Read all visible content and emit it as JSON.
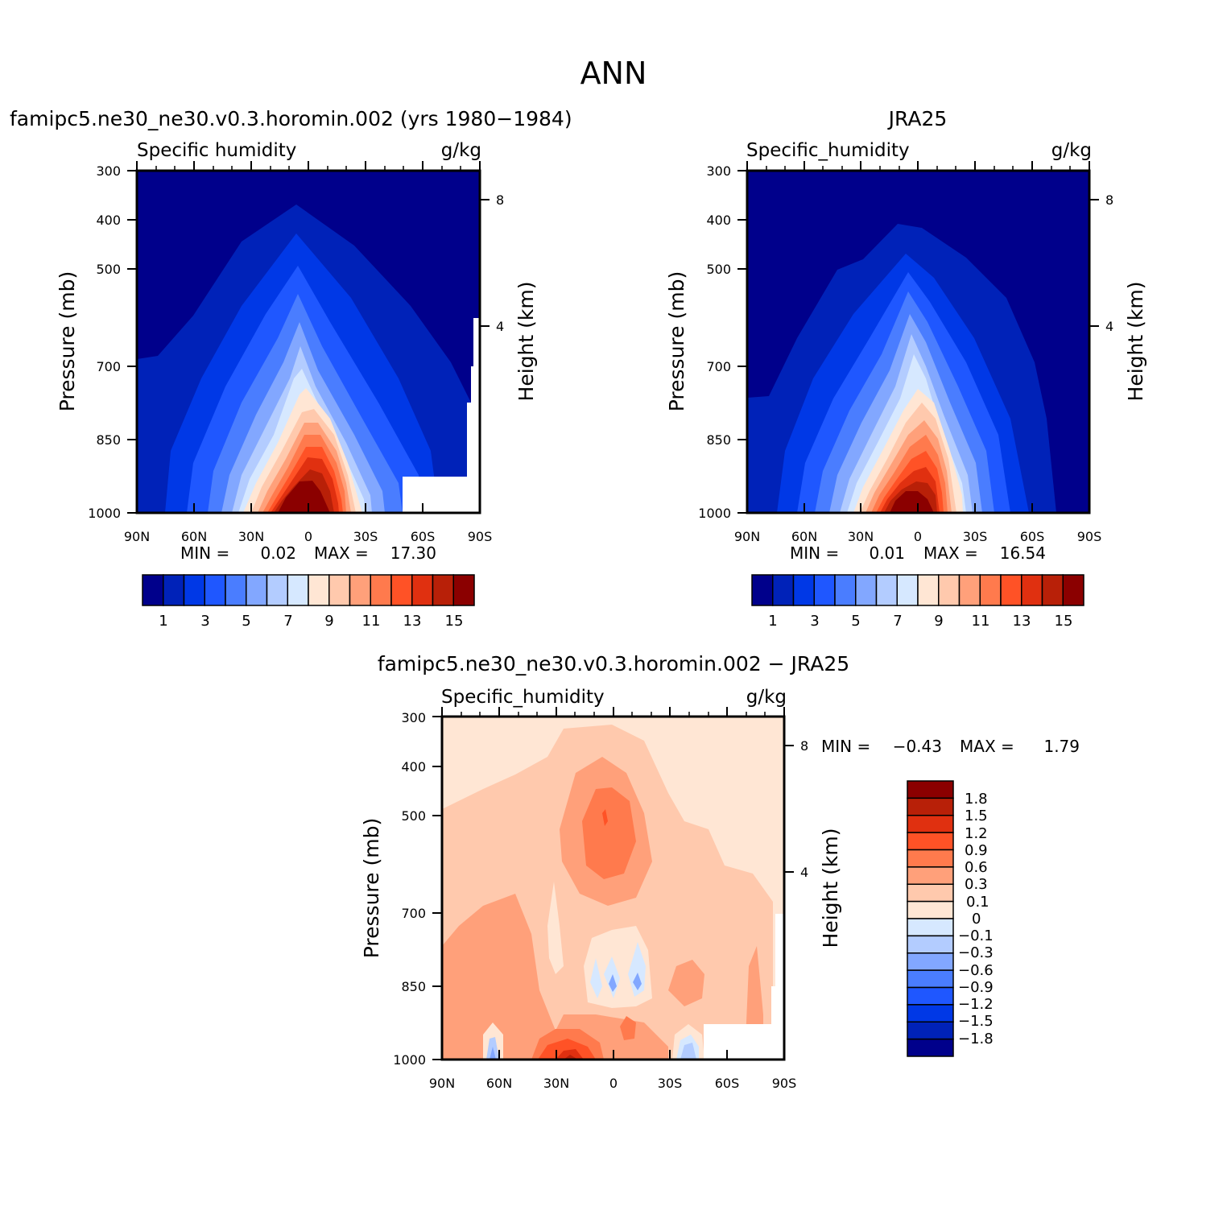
{
  "figure_title": "ANN",
  "colors": {
    "abs_palette": [
      "#00008b",
      "#0022b8",
      "#0038e6",
      "#1f57ff",
      "#4a7dff",
      "#82a7ff",
      "#b3ccff",
      "#d6e8ff",
      "#ffe6d4",
      "#ffc9ad",
      "#ffa07a",
      "#ff7a4d",
      "#ff5226",
      "#e03010",
      "#b82008",
      "#8b0000"
    ],
    "diff_palette": [
      "#00008b",
      "#0022b8",
      "#0038e6",
      "#1f57ff",
      "#4a7dff",
      "#82a7ff",
      "#b3ccff",
      "#d6e8ff",
      "#ffe6d4",
      "#ffc9ad",
      "#ffa07a",
      "#ff7a4d",
      "#ff5226",
      "#e03010",
      "#b82008",
      "#8b0000"
    ]
  },
  "panels": {
    "model": {
      "title": "famipc5.ne30_ne30.v0.3.horomin.002 (yrs 1980−1984)",
      "left_label": "Specific humidity",
      "right_label": "g/kg",
      "min_label": "MIN =",
      "min_value": "0.02",
      "max_label": "MAX =",
      "max_value": "17.30",
      "colorbar_labels": [
        "1",
        "3",
        "5",
        "7",
        "9",
        "11",
        "13",
        "15"
      ]
    },
    "obs": {
      "title": "JRA25",
      "left_label": "Specific_humidity",
      "right_label": "g/kg",
      "min_label": "MIN =",
      "min_value": "0.01",
      "max_label": "MAX =",
      "max_value": "16.54",
      "colorbar_labels": [
        "1",
        "3",
        "5",
        "7",
        "9",
        "11",
        "13",
        "15"
      ]
    },
    "diff": {
      "title": "famipc5.ne30_ne30.v0.3.horomin.002 − JRA25",
      "left_label": "Specific_humidity",
      "right_label": "g/kg",
      "min_label": "MIN =",
      "min_value": "−0.43",
      "max_label": "MAX =",
      "max_value": "1.79",
      "colorbar_labels": [
        "1.8",
        "1.5",
        "1.2",
        "0.9",
        "0.6",
        "0.3",
        "0.1",
        "0",
        "−0.1",
        "−0.3",
        "−0.6",
        "−0.9",
        "−1.2",
        "−1.5",
        "−1.8"
      ]
    }
  },
  "axes": {
    "y_label": "Pressure (mb)",
    "y2_label": "Height (km)",
    "y_ticks": [
      "300",
      "400",
      "500",
      "700",
      "850",
      "1000"
    ],
    "y2_ticks": [
      "8",
      "4"
    ],
    "x_ticks": [
      "90N",
      "60N",
      "30N",
      "0",
      "30S",
      "60S",
      "90S"
    ]
  },
  "chart_data": [
    {
      "type": "heatmap",
      "title": "famipc5.ne30_ne30.v0.3.horomin.002 (yrs 1980−1984)",
      "variable": "Specific humidity",
      "units": "g/kg",
      "xlabel": "",
      "ylabel": "Pressure (mb)",
      "y2label": "Height (km)",
      "x": [
        90,
        60,
        30,
        0,
        -30,
        -60,
        -90
      ],
      "y": [
        300,
        400,
        500,
        700,
        850,
        1000
      ],
      "levels": [
        1,
        2,
        3,
        4,
        5,
        6,
        7,
        8,
        9,
        10,
        11,
        12,
        13,
        14,
        15
      ],
      "min": 0.02,
      "max": 17.3
    },
    {
      "type": "heatmap",
      "title": "JRA25",
      "variable": "Specific_humidity",
      "units": "g/kg",
      "xlabel": "",
      "ylabel": "Pressure (mb)",
      "y2label": "Height (km)",
      "x": [
        90,
        60,
        30,
        0,
        -30,
        -60,
        -90
      ],
      "y": [
        300,
        400,
        500,
        700,
        850,
        1000
      ],
      "levels": [
        1,
        2,
        3,
        4,
        5,
        6,
        7,
        8,
        9,
        10,
        11,
        12,
        13,
        14,
        15
      ],
      "min": 0.01,
      "max": 16.54
    },
    {
      "type": "heatmap",
      "title": "famipc5.ne30_ne30.v0.3.horomin.002 − JRA25",
      "variable": "Specific_humidity",
      "units": "g/kg",
      "xlabel": "",
      "ylabel": "Pressure (mb)",
      "y2label": "Height (km)",
      "x": [
        90,
        60,
        30,
        0,
        -30,
        -60,
        -90
      ],
      "y": [
        300,
        400,
        500,
        700,
        850,
        1000
      ],
      "levels": [
        -1.8,
        -1.5,
        -1.2,
        -0.9,
        -0.6,
        -0.3,
        -0.1,
        0,
        0.1,
        0.3,
        0.6,
        0.9,
        1.2,
        1.5,
        1.8
      ],
      "min": -0.43,
      "max": 1.79
    }
  ]
}
